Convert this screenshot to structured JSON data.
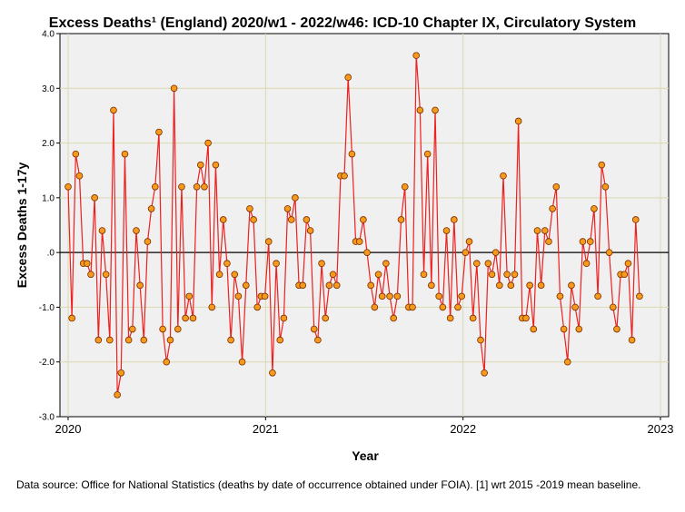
{
  "chart_data": {
    "type": "line",
    "title": "Excess Deaths¹ (England) 2020/w1 - 2022/w46: ICD-10 Chapter IX, Circulatory System",
    "xlabel": "Year",
    "ylabel": "Excess Deaths 1-17y",
    "xlim": [
      2020,
      2023
    ],
    "ylim": [
      -3.0,
      4.0
    ],
    "xticks": [
      2020,
      2021,
      2022,
      2023
    ],
    "xtick_labels": [
      "2020",
      "2021",
      "2022",
      "2023"
    ],
    "yticks": [
      4.0,
      3.0,
      2.0,
      1.0,
      0.0,
      -1.0,
      -2.0,
      -3.0
    ],
    "ytick_labels": [
      "4.0",
      "3.0",
      "2.0",
      "1.0",
      ".0",
      "-1.0",
      "-2.0",
      "-3.0"
    ],
    "reference_line_y": 0.0,
    "grid": true,
    "colors": {
      "line": "#ee2020",
      "marker_fill": "#f59a1a",
      "marker_edge": "#7a2a00",
      "plot_bg": "#f0f0f0",
      "grid": "#d9d9b0"
    },
    "series": [
      {
        "name": "Excess deaths",
        "x_start": 2020.0,
        "x_step_weeks": 1,
        "weeks_per_year": 52.18,
        "values": [
          1.2,
          -1.2,
          1.8,
          1.4,
          -0.2,
          -0.2,
          -0.4,
          1.0,
          -1.6,
          0.4,
          -0.4,
          -1.6,
          2.6,
          -2.6,
          -2.2,
          1.8,
          -1.6,
          -1.4,
          0.4,
          -0.6,
          -1.6,
          0.2,
          0.8,
          1.2,
          2.2,
          -1.4,
          -2.0,
          -1.6,
          3.0,
          -1.4,
          1.2,
          -1.2,
          -0.8,
          -1.2,
          1.2,
          1.6,
          1.2,
          2.0,
          -1.0,
          1.6,
          -0.4,
          0.6,
          -0.2,
          -1.6,
          -0.4,
          -0.8,
          -2.0,
          -0.6,
          0.8,
          0.6,
          -1.0,
          -0.8,
          -0.8,
          0.2,
          -2.2,
          -0.2,
          -1.6,
          -1.2,
          0.8,
          0.6,
          1.0,
          -0.6,
          -0.6,
          0.6,
          0.4,
          -1.4,
          -1.6,
          -0.2,
          -1.2,
          -0.6,
          -0.4,
          -0.6,
          1.4,
          1.4,
          3.2,
          1.8,
          0.2,
          0.2,
          0.6,
          0.0,
          -0.6,
          -1.0,
          -0.4,
          -0.8,
          -0.2,
          -0.8,
          -1.2,
          -0.8,
          0.6,
          1.2,
          -1.0,
          -1.0,
          3.6,
          2.6,
          -0.4,
          1.8,
          -0.6,
          2.6,
          -0.8,
          -1.0,
          0.4,
          -1.2,
          0.6,
          -1.0,
          -0.8,
          0.0,
          0.2,
          -1.2,
          -0.2,
          -1.6,
          -2.2,
          -0.2,
          -0.4,
          0.0,
          -0.6,
          1.4,
          -0.4,
          -0.6,
          -0.4,
          2.4,
          -1.2,
          -1.2,
          -0.6,
          -1.4,
          0.4,
          -0.6,
          0.4,
          0.2,
          0.8,
          1.2,
          -0.8,
          -1.4,
          -2.0,
          -0.6,
          -1.0,
          -1.4,
          0.2,
          -0.2,
          0.2,
          0.8,
          -0.8,
          1.6,
          1.2,
          0.0,
          -1.0,
          -1.4,
          -0.4,
          -0.4,
          -0.2,
          -1.6,
          0.6,
          -0.8
        ]
      }
    ]
  },
  "footnote": "Data source: Office for National Statistics (deaths by date of occurrence obtained under FOIA). [1] wrt 2015 -2019 mean baseline."
}
